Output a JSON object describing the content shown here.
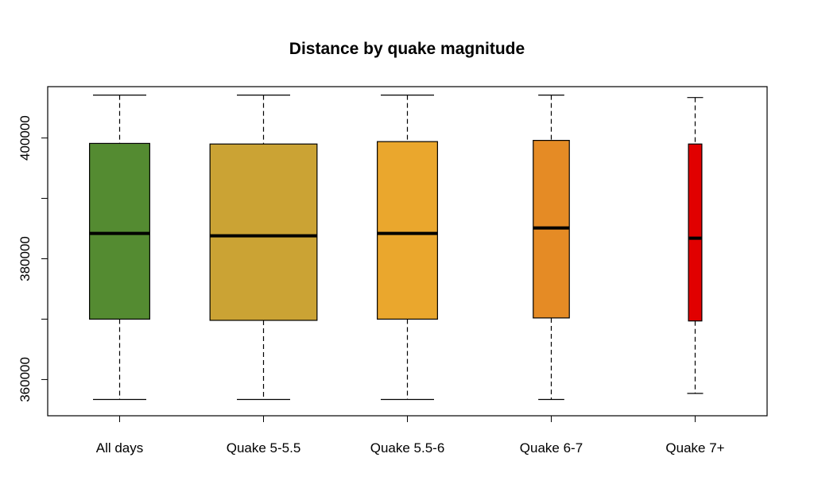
{
  "chart_data": {
    "type": "boxplot",
    "title": "Distance by quake magnitude",
    "xlabel": "",
    "ylabel": "",
    "ylim": [
      354000,
      408500
    ],
    "yticks": [
      360000,
      380000,
      400000
    ],
    "ytick_labels": [
      "360000",
      "380000",
      "400000"
    ],
    "grid": false,
    "series": [
      {
        "name": "All days",
        "color": "#548B31",
        "whisker_low": 356700,
        "q1": 370000,
        "median": 384200,
        "q3": 399100,
        "whisker_high": 407100,
        "relative_width": 0.45
      },
      {
        "name": "Quake 5-5.5",
        "color": "#CBA334",
        "whisker_low": 356700,
        "q1": 369800,
        "median": 383800,
        "q3": 399000,
        "whisker_high": 407100,
        "relative_width": 0.8
      },
      {
        "name": "Quake 5.5-6",
        "color": "#EAA72D",
        "whisker_low": 356700,
        "q1": 370000,
        "median": 384200,
        "q3": 399400,
        "whisker_high": 407100,
        "relative_width": 0.45
      },
      {
        "name": "Quake 6-7",
        "color": "#E58B25",
        "whisker_low": 356700,
        "q1": 370200,
        "median": 385100,
        "q3": 399600,
        "whisker_high": 407100,
        "relative_width": 0.27
      },
      {
        "name": "Quake 7+",
        "color": "#E10000",
        "whisker_low": 357700,
        "q1": 369700,
        "median": 383400,
        "q3": 399000,
        "whisker_high": 406700,
        "relative_width": 0.1
      }
    ]
  }
}
